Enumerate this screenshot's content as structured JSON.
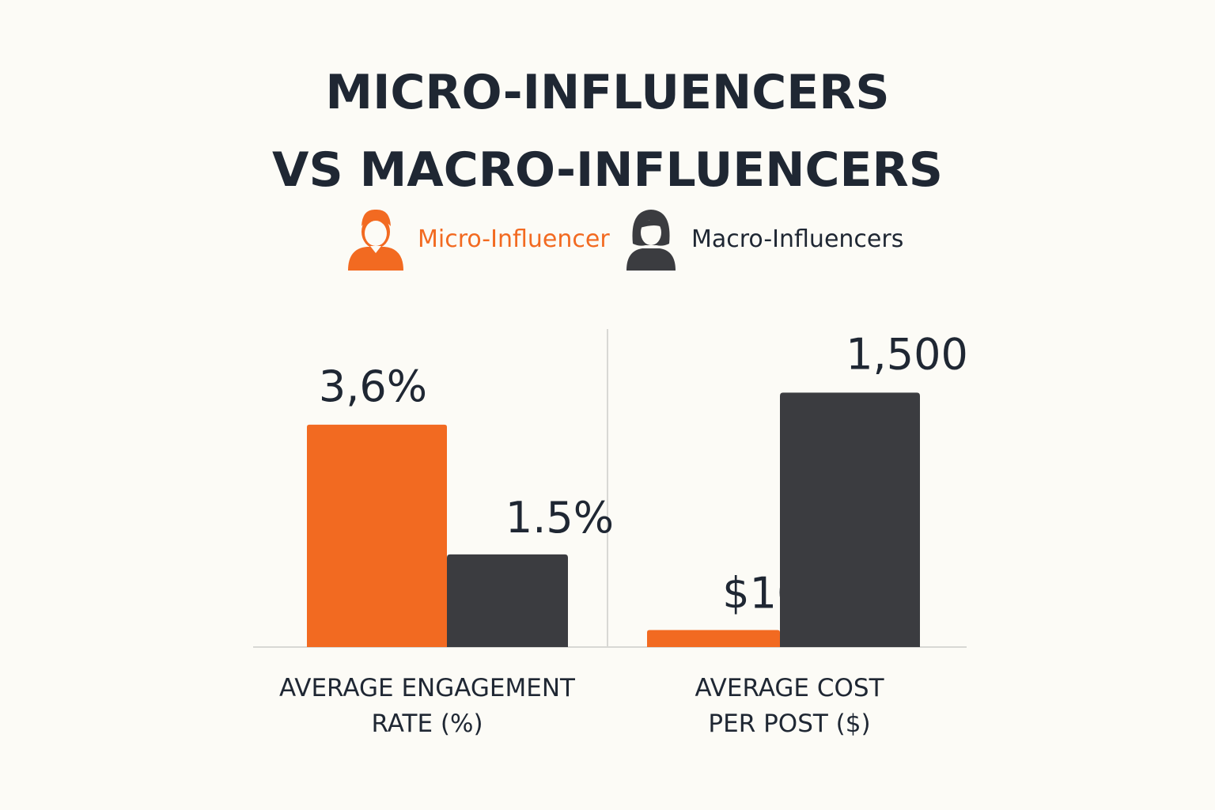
{
  "title_lines": [
    "MICRO-INFLUENCERS",
    "VS MACRO-INFLUENCERS"
  ],
  "legend": [
    {
      "label": "Micro-Influencer",
      "icon": "male-user-icon",
      "color": "#f26a21"
    },
    {
      "label": "Macro-Influencers",
      "icon": "female-user-icon",
      "color": "#3b3c40"
    }
  ],
  "colors": {
    "micro": "#f26a21",
    "macro": "#3b3c40",
    "text": "#1f2733",
    "axis": "#d8d8d4"
  },
  "chart_data": [
    {
      "type": "bar",
      "title": "",
      "categories": [
        "AVERAGE ENGAGEMENT",
        "RATE (%)"
      ],
      "category_label_lines": [
        "AVERAGE ENGAGEMENT",
        "RATE (%)"
      ],
      "series": [
        {
          "name": "Micro-Influencer",
          "value": 3.6,
          "label": "3,6%"
        },
        {
          "name": "Macro-Influencers",
          "value": 1.5,
          "label": "1.5%"
        }
      ],
      "ylim": [
        0,
        4.2
      ]
    },
    {
      "type": "bar",
      "title": "",
      "category_label_lines": [
        "AVERAGE COST",
        "PER POST ($)"
      ],
      "series": [
        {
          "name": "Micro-Influencer",
          "value": 100,
          "label": "$100"
        },
        {
          "name": "Macro-Influencers",
          "value": 1500,
          "label": "1,500"
        }
      ],
      "ylim": [
        0,
        1530
      ]
    }
  ]
}
